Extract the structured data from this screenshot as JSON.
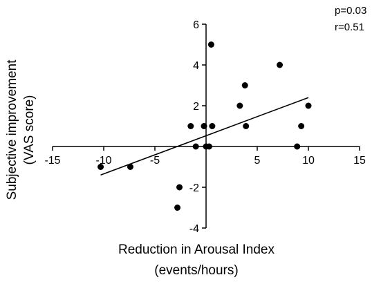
{
  "chart_data": {
    "type": "scatter",
    "xlabel_lines": [
      "Reduction in Arousal Index",
      "(events/hours)"
    ],
    "ylabel_lines": [
      "Subjective improvement",
      "(VAS score)"
    ],
    "xlim": [
      -15,
      15
    ],
    "ylim": [
      -4,
      6
    ],
    "xticks": [
      -15,
      -10,
      -5,
      5,
      10,
      15
    ],
    "xtick_labels": [
      "-15",
      "-10",
      "-5",
      "5",
      "10",
      "15"
    ],
    "yticks": [
      -4,
      -2,
      2,
      4,
      6
    ],
    "ytick_labels": [
      "-4",
      "-2",
      "2",
      "4",
      "6"
    ],
    "annotations": [
      "p=0.03",
      "r=0.51"
    ],
    "grid": false,
    "points": [
      {
        "x": 0.5,
        "y": 5
      },
      {
        "x": 7.2,
        "y": 4
      },
      {
        "x": 3.8,
        "y": 3
      },
      {
        "x": 3.3,
        "y": 2
      },
      {
        "x": 10.0,
        "y": 2
      },
      {
        "x": -1.5,
        "y": 1
      },
      {
        "x": -0.2,
        "y": 1
      },
      {
        "x": 0.6,
        "y": 1
      },
      {
        "x": 3.9,
        "y": 1
      },
      {
        "x": 9.3,
        "y": 1
      },
      {
        "x": -1.0,
        "y": 0
      },
      {
        "x": 0.0,
        "y": 0
      },
      {
        "x": 0.3,
        "y": 0
      },
      {
        "x": 8.9,
        "y": 0
      },
      {
        "x": -10.3,
        "y": -1
      },
      {
        "x": -7.4,
        "y": -1
      },
      {
        "x": -2.6,
        "y": -2
      },
      {
        "x": -2.8,
        "y": -3
      }
    ],
    "regression_line": {
      "x": [
        -10.3,
        10.0
      ],
      "y": [
        -1.4,
        2.4
      ]
    }
  }
}
